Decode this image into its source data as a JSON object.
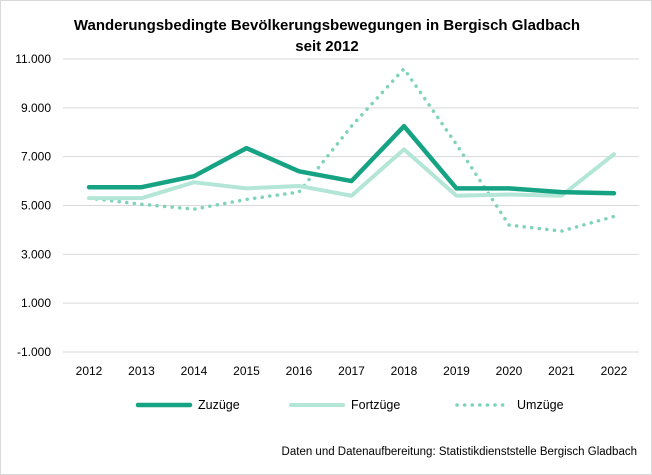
{
  "chart_data": {
    "type": "line",
    "title_line1": "Wanderungsbedingte Bevölkerungsbewegungen in Bergisch Gladbach",
    "title_line2": "seit 2012",
    "categories": [
      "2012",
      "2013",
      "2014",
      "2015",
      "2016",
      "2017",
      "2018",
      "2019",
      "2020",
      "2021",
      "2022"
    ],
    "y_ticks": [
      "11.000",
      "9.000",
      "7.000",
      "5.000",
      "3.000",
      "1.000",
      "-1.000"
    ],
    "y_tick_values": [
      11000,
      9000,
      7000,
      5000,
      3000,
      1000,
      -1000
    ],
    "ylim": [
      -1000,
      11000
    ],
    "grid": true,
    "legend_position": "bottom",
    "series": [
      {
        "name": "Zuzüge",
        "color": "#16a383",
        "style": "solid-thick",
        "values": [
          5750,
          5750,
          6200,
          7350,
          6400,
          6000,
          8250,
          5700,
          5700,
          5550,
          5500
        ]
      },
      {
        "name": "Fortzüge",
        "color": "#b3e6d6",
        "style": "solid",
        "values": [
          5300,
          5300,
          5950,
          5700,
          5800,
          5400,
          7300,
          5400,
          5450,
          5400,
          7100
        ]
      },
      {
        "name": "Umzüge",
        "color": "#7ed3bb",
        "style": "dotted",
        "values": [
          5300,
          5050,
          4850,
          5250,
          5550,
          8250,
          10600,
          7500,
          4200,
          3950,
          4550
        ]
      }
    ]
  },
  "source": "Daten und Datenaufbereitung: Statistikdienststelle Bergisch Gladbach"
}
